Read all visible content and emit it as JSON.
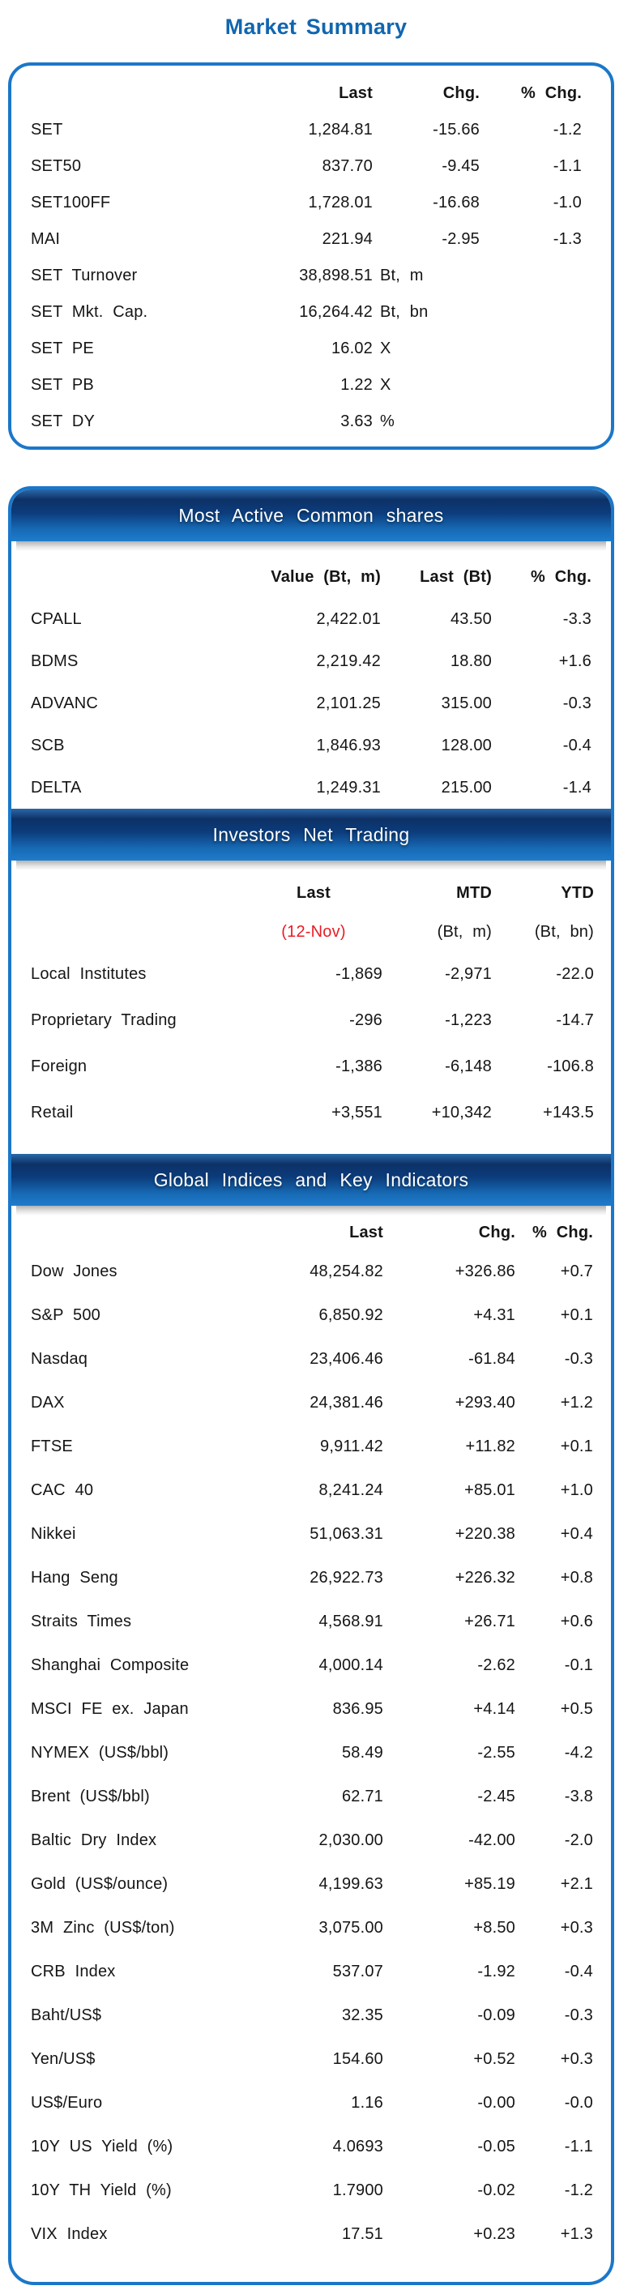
{
  "title": "Market Summary",
  "colors": {
    "accent_blue": "#1b77c9",
    "title_blue": "#1166b0",
    "header_bar_dark": "#0d3166",
    "header_bar_bright": "#1f7ccd",
    "date_red": "#e71d25",
    "text": "#151515"
  },
  "market_summary": {
    "columns": [
      "Last",
      "Chg.",
      "% Chg."
    ],
    "rows": [
      {
        "label": "SET",
        "values": [
          "1,284.81",
          "-15.66",
          "-1.2"
        ]
      },
      {
        "label": "SET50",
        "values": [
          "837.70",
          "-9.45",
          "-1.1"
        ]
      },
      {
        "label": "SET100FF",
        "values": [
          "1,728.01",
          "-16.68",
          "-1.0"
        ]
      },
      {
        "label": "MAI",
        "values": [
          "221.94",
          "-2.95",
          "-1.3"
        ]
      },
      {
        "label": "SET Turnover",
        "value": "38,898.51",
        "suffix": "Bt, m"
      },
      {
        "label": "SET Mkt. Cap.",
        "value": "16,264.42",
        "suffix": "Bt, bn"
      },
      {
        "label": "SET PE",
        "value": "16.02",
        "suffix": "X"
      },
      {
        "label": "SET PB",
        "value": "1.22",
        "suffix": "X"
      },
      {
        "label": "SET DY",
        "value": "3.63",
        "suffix": "%"
      }
    ]
  },
  "most_active": {
    "title": "Most Active Common shares",
    "columns": [
      "Value (Bt, m)",
      "Last (Bt)",
      "% Chg."
    ],
    "rows": [
      {
        "label": "CPALL",
        "values": [
          "2,422.01",
          "43.50",
          "-3.3"
        ]
      },
      {
        "label": "BDMS",
        "values": [
          "2,219.42",
          "18.80",
          "+1.6"
        ]
      },
      {
        "label": "ADVANC",
        "values": [
          "2,101.25",
          "315.00",
          "-0.3"
        ]
      },
      {
        "label": "SCB",
        "values": [
          "1,846.93",
          "128.00",
          "-0.4"
        ]
      },
      {
        "label": "DELTA",
        "values": [
          "1,249.31",
          "215.00",
          "-1.4"
        ]
      }
    ]
  },
  "investors": {
    "title": "Investors Net Trading",
    "columns_line1": [
      "Last",
      "MTD",
      "YTD"
    ],
    "columns_line2": [
      "(12-Nov)",
      "(Bt, m)",
      "(Bt, bn)"
    ],
    "rows": [
      {
        "label": "Local Institutes",
        "values": [
          "-1,869",
          "-2,971",
          "-22.0"
        ]
      },
      {
        "label": "Proprietary Trading",
        "values": [
          "-296",
          "-1,223",
          "-14.7"
        ]
      },
      {
        "label": "Foreign",
        "values": [
          "-1,386",
          "-6,148",
          "-106.8"
        ]
      },
      {
        "label": "Retail",
        "values": [
          "+3,551",
          "+10,342",
          "+143.5"
        ]
      }
    ]
  },
  "global_indices": {
    "title": "Global Indices and Key Indicators",
    "columns": [
      "Last",
      "Chg.",
      "% Chg."
    ],
    "rows": [
      {
        "label": "Dow Jones",
        "values": [
          "48,254.82",
          "+326.86",
          "+0.7"
        ]
      },
      {
        "label": "S&P 500",
        "values": [
          "6,850.92",
          "+4.31",
          "+0.1"
        ]
      },
      {
        "label": "Nasdaq",
        "values": [
          "23,406.46",
          "-61.84",
          "-0.3"
        ]
      },
      {
        "label": "DAX",
        "values": [
          "24,381.46",
          "+293.40",
          "+1.2"
        ]
      },
      {
        "label": "FTSE",
        "values": [
          "9,911.42",
          "+11.82",
          "+0.1"
        ]
      },
      {
        "label": "CAC 40",
        "values": [
          "8,241.24",
          "+85.01",
          "+1.0"
        ]
      },
      {
        "label": "Nikkei",
        "values": [
          "51,063.31",
          "+220.38",
          "+0.4"
        ]
      },
      {
        "label": "Hang Seng",
        "values": [
          "26,922.73",
          "+226.32",
          "+0.8"
        ]
      },
      {
        "label": "Straits Times",
        "values": [
          "4,568.91",
          "+26.71",
          "+0.6"
        ]
      },
      {
        "label": "Shanghai Composite",
        "values": [
          "4,000.14",
          "-2.62",
          "-0.1"
        ]
      },
      {
        "label": "MSCI FE ex. Japan",
        "values": [
          "836.95",
          "+4.14",
          "+0.5"
        ]
      },
      {
        "label": "NYMEX (US$/bbl)",
        "values": [
          "58.49",
          "-2.55",
          "-4.2"
        ]
      },
      {
        "label": "Brent (US$/bbl)",
        "values": [
          "62.71",
          "-2.45",
          "-3.8"
        ]
      },
      {
        "label": "Baltic Dry Index",
        "values": [
          "2,030.00",
          "-42.00",
          "-2.0"
        ]
      },
      {
        "label": "Gold (US$/ounce)",
        "values": [
          "4,199.63",
          "+85.19",
          "+2.1"
        ]
      },
      {
        "label": "3M Zinc (US$/ton)",
        "values": [
          "3,075.00",
          "+8.50",
          "+0.3"
        ]
      },
      {
        "label": "CRB Index",
        "values": [
          "537.07",
          "-1.92",
          "-0.4"
        ]
      },
      {
        "label": "Baht/US$",
        "values": [
          "32.35",
          "-0.09",
          "-0.3"
        ]
      },
      {
        "label": "Yen/US$",
        "values": [
          "154.60",
          "+0.52",
          "+0.3"
        ]
      },
      {
        "label": "US$/Euro",
        "values": [
          "1.16",
          "-0.00",
          "-0.0"
        ]
      },
      {
        "label": "10Y US Yield (%)",
        "values": [
          "4.0693",
          "-0.05",
          "-1.1"
        ]
      },
      {
        "label": "10Y TH Yield (%)",
        "values": [
          "1.7900",
          "-0.02",
          "-1.2"
        ]
      },
      {
        "label": "VIX Index",
        "values": [
          "17.51",
          "+0.23",
          "+1.3"
        ]
      }
    ]
  }
}
